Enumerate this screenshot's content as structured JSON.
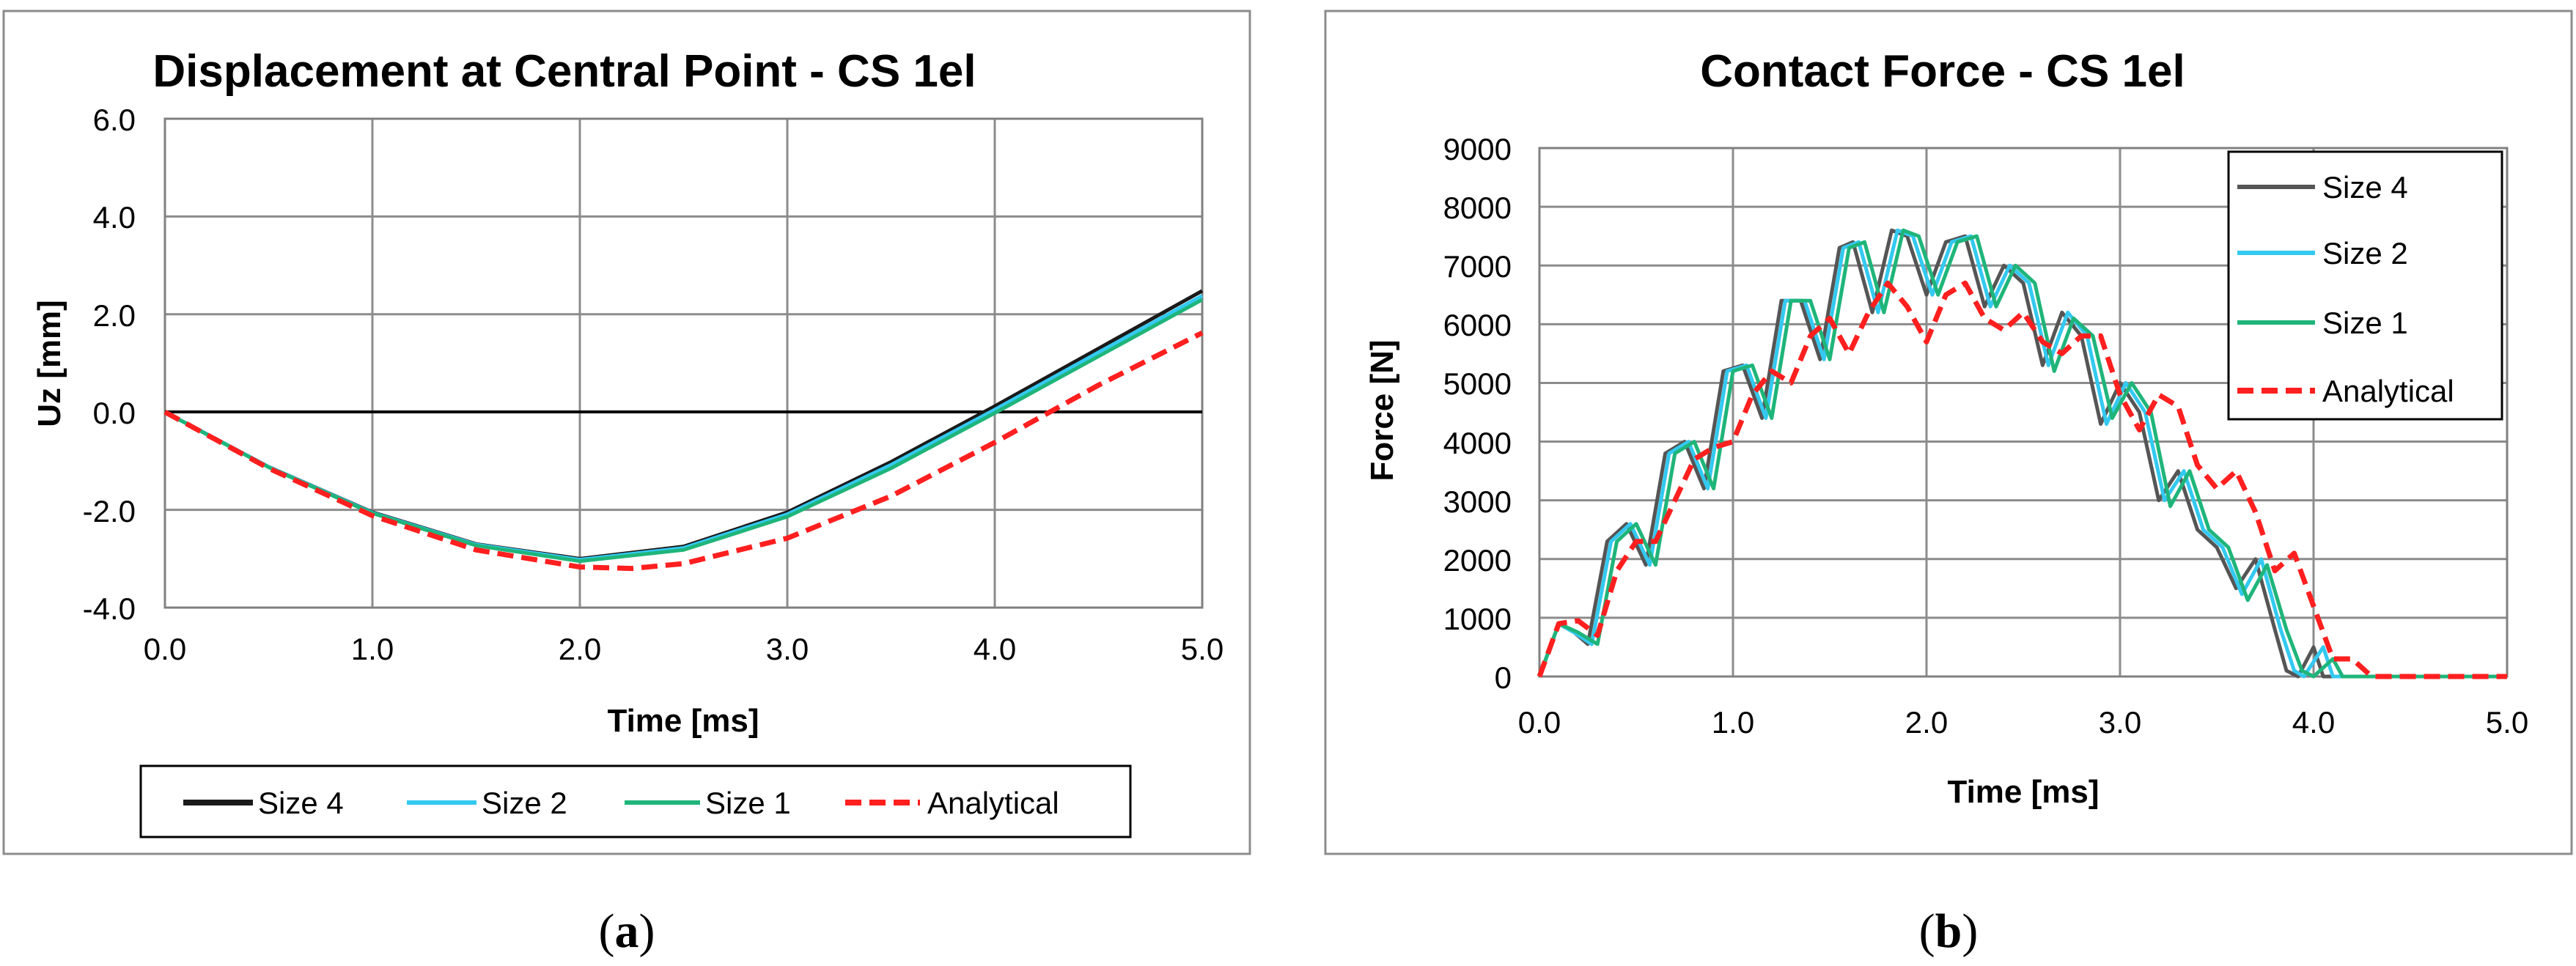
{
  "captions": {
    "a": "a",
    "b": "b"
  },
  "chart_data": [
    {
      "type": "line",
      "title": "Displacement at Central Point - CS 1el",
      "xlabel": "Time [ms]",
      "ylabel": "Uz  [mm]",
      "xlim": [
        0,
        5
      ],
      "ylim": [
        -4,
        6
      ],
      "xticks": [
        "0.0",
        "1.0",
        "2.0",
        "3.0",
        "4.0",
        "5.0"
      ],
      "yticks": [
        "6.0",
        "4.0",
        "2.0",
        "0.0",
        "-2.0",
        "-4.0"
      ],
      "grid": true,
      "legend_position": "bottom",
      "series": [
        {
          "name": "Size 4",
          "color": "#1a1a1a",
          "dash": "solid",
          "x": [
            0,
            0.5,
            1,
            1.5,
            2,
            2.5,
            3,
            3.5,
            4,
            4.5,
            5
          ],
          "y": [
            0,
            -1.12,
            -2.05,
            -2.7,
            -3.0,
            -2.75,
            -2.05,
            -1.02,
            0.12,
            1.3,
            2.48
          ]
        },
        {
          "name": "Size 2",
          "color": "#33c9f0",
          "dash": "solid",
          "x": [
            0,
            0.5,
            1,
            1.5,
            2,
            2.5,
            3,
            3.5,
            4,
            4.5,
            5
          ],
          "y": [
            0,
            -1.12,
            -2.06,
            -2.71,
            -3.02,
            -2.78,
            -2.09,
            -1.08,
            0.05,
            1.22,
            2.38
          ]
        },
        {
          "name": "Size 1",
          "color": "#1fb57a",
          "dash": "solid",
          "x": [
            0,
            0.5,
            1,
            1.5,
            2,
            2.5,
            3,
            3.5,
            4,
            4.5,
            5
          ],
          "y": [
            0,
            -1.13,
            -2.07,
            -2.73,
            -3.05,
            -2.82,
            -2.14,
            -1.15,
            -0.02,
            1.14,
            2.3
          ]
        },
        {
          "name": "Analytical",
          "color": "#ff1f1f",
          "dash": "dashed",
          "x": [
            0,
            0.5,
            1,
            1.5,
            2,
            2.25,
            2.5,
            3,
            3.5,
            4,
            4.5,
            5
          ],
          "y": [
            0,
            -1.15,
            -2.12,
            -2.82,
            -3.17,
            -3.2,
            -3.1,
            -2.58,
            -1.72,
            -0.62,
            0.55,
            1.62
          ]
        }
      ]
    },
    {
      "type": "line",
      "title": "Contact Force - CS 1el",
      "xlabel": "Time [ms]",
      "ylabel": "Force  [N]",
      "xlim": [
        0,
        5
      ],
      "ylim": [
        0,
        9000
      ],
      "xticks": [
        "0.0",
        "1.0",
        "2.0",
        "3.0",
        "4.0",
        "5.0"
      ],
      "yticks": [
        "9000",
        "8000",
        "7000",
        "6000",
        "5000",
        "4000",
        "3000",
        "2000",
        "1000",
        "0"
      ],
      "grid": true,
      "legend_position": "top-right",
      "series": [
        {
          "name": "Size 4",
          "color": "#555555",
          "dash": "solid",
          "x": [
            0,
            0.1,
            0.18,
            0.25,
            0.35,
            0.45,
            0.55,
            0.65,
            0.75,
            0.85,
            0.95,
            1.05,
            1.15,
            1.25,
            1.35,
            1.45,
            1.55,
            1.62,
            1.72,
            1.82,
            1.9,
            2.0,
            2.1,
            2.2,
            2.3,
            2.4,
            2.5,
            2.6,
            2.7,
            2.8,
            2.9,
            3.0,
            3.1,
            3.2,
            3.3,
            3.4,
            3.5,
            3.6,
            3.7,
            3.8,
            3.86,
            3.92,
            4.0,
            4.05,
            4.3,
            5.0
          ],
          "y": [
            0,
            900,
            750,
            550,
            2300,
            2600,
            1900,
            3800,
            4000,
            3200,
            5200,
            5300,
            4400,
            6400,
            6400,
            5400,
            7300,
            7400,
            6200,
            7600,
            7500,
            6500,
            7400,
            7500,
            6300,
            7000,
            6700,
            5300,
            6200,
            5800,
            4300,
            5000,
            4500,
            3000,
            3500,
            2500,
            2200,
            1500,
            2000,
            800,
            100,
            0,
            500,
            0,
            0,
            0
          ]
        },
        {
          "name": "Size 2",
          "color": "#33c9f0",
          "dash": "solid",
          "x": [
            0,
            0.1,
            0.18,
            0.27,
            0.37,
            0.47,
            0.57,
            0.67,
            0.77,
            0.87,
            0.97,
            1.07,
            1.17,
            1.27,
            1.37,
            1.47,
            1.57,
            1.65,
            1.75,
            1.85,
            1.93,
            2.03,
            2.13,
            2.23,
            2.33,
            2.43,
            2.53,
            2.63,
            2.73,
            2.83,
            2.93,
            3.03,
            3.13,
            3.23,
            3.33,
            3.43,
            3.53,
            3.63,
            3.73,
            3.83,
            3.9,
            3.95,
            4.05,
            4.1,
            4.3,
            5.0
          ],
          "y": [
            0,
            900,
            750,
            550,
            2300,
            2600,
            1900,
            3800,
            4000,
            3200,
            5200,
            5300,
            4400,
            6400,
            6400,
            5400,
            7300,
            7400,
            6200,
            7600,
            7500,
            6500,
            7400,
            7500,
            6300,
            7000,
            6700,
            5300,
            6200,
            5800,
            4300,
            5000,
            4500,
            3000,
            3500,
            2500,
            2200,
            1400,
            2000,
            800,
            100,
            0,
            500,
            0,
            0,
            0
          ]
        },
        {
          "name": "Size 1",
          "color": "#1fb57a",
          "dash": "solid",
          "x": [
            0,
            0.1,
            0.2,
            0.3,
            0.4,
            0.5,
            0.6,
            0.7,
            0.8,
            0.9,
            1.0,
            1.1,
            1.2,
            1.3,
            1.4,
            1.5,
            1.6,
            1.68,
            1.78,
            1.88,
            1.96,
            2.06,
            2.16,
            2.26,
            2.36,
            2.46,
            2.56,
            2.66,
            2.76,
            2.86,
            2.96,
            3.06,
            3.16,
            3.26,
            3.36,
            3.46,
            3.56,
            3.66,
            3.76,
            3.86,
            3.94,
            4.0,
            4.1,
            4.15,
            4.3,
            5.0
          ],
          "y": [
            0,
            900,
            750,
            550,
            2300,
            2600,
            1900,
            3800,
            4000,
            3200,
            5200,
            5300,
            4400,
            6400,
            6400,
            5400,
            7300,
            7400,
            6200,
            7600,
            7500,
            6500,
            7400,
            7500,
            6300,
            7000,
            6700,
            5200,
            6100,
            5800,
            4400,
            5000,
            4500,
            2900,
            3500,
            2500,
            2200,
            1300,
            1900,
            800,
            100,
            0,
            300,
            0,
            0,
            0
          ]
        },
        {
          "name": "Analytical",
          "color": "#ff1f1f",
          "dash": "dashed",
          "x": [
            0,
            0.1,
            0.2,
            0.3,
            0.4,
            0.5,
            0.6,
            0.7,
            0.8,
            0.9,
            1.0,
            1.1,
            1.2,
            1.3,
            1.4,
            1.5,
            1.6,
            1.7,
            1.8,
            1.9,
            2.0,
            2.1,
            2.2,
            2.3,
            2.4,
            2.5,
            2.6,
            2.7,
            2.8,
            2.9,
            3.0,
            3.1,
            3.2,
            3.3,
            3.4,
            3.5,
            3.6,
            3.7,
            3.8,
            3.9,
            4.0,
            4.1,
            4.2,
            4.3,
            4.4,
            5.0
          ],
          "y": [
            0,
            900,
            950,
            700,
            1800,
            2300,
            2300,
            3000,
            3700,
            3900,
            4000,
            4800,
            5200,
            5000,
            5800,
            6100,
            5500,
            6200,
            6700,
            6300,
            5700,
            6500,
            6700,
            6100,
            5900,
            6200,
            5700,
            5500,
            5800,
            5800,
            4800,
            4200,
            4800,
            4600,
            3600,
            3200,
            3500,
            2800,
            1800,
            2100,
            1200,
            300,
            300,
            0,
            0,
            0
          ]
        }
      ]
    }
  ]
}
